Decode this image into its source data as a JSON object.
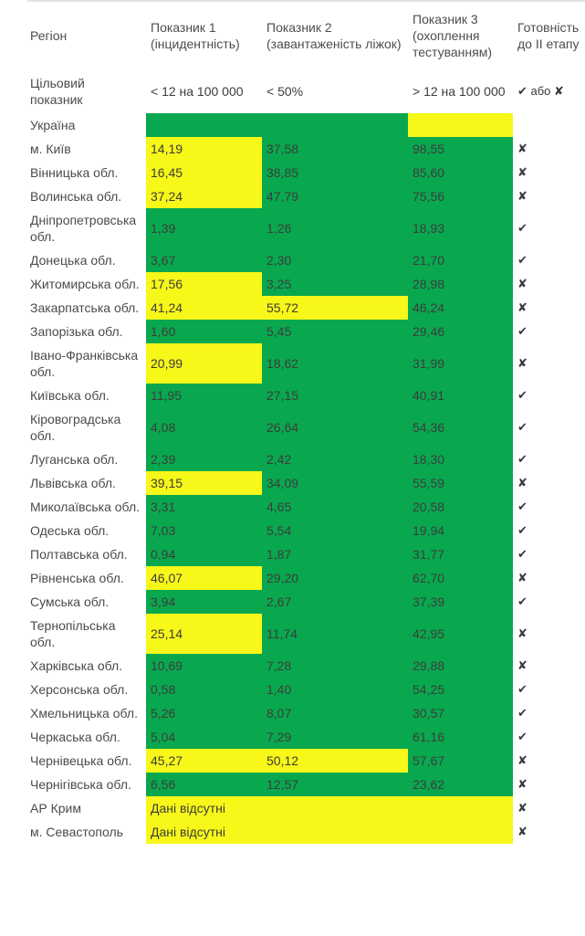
{
  "chart_data": {
    "type": "table",
    "colors": {
      "green": "#09a84f",
      "yellow": "#f7f719",
      "white": "#ffffff"
    },
    "header": {
      "region": "Регіон",
      "indicator1": "Показник 1 (інцидентність)",
      "indicator2": "Показник 2 (завантаженість ліжок)",
      "indicator3": "Показник 3 (охоплення тестуванням)",
      "readiness": "Готовність до II етапу"
    },
    "target_row": {
      "label": "Цільовий показник",
      "indicator1": "< 12 на 100 000",
      "indicator2": "< 50%",
      "indicator3": "> 12 на 100 000",
      "readiness": "✔ або ✘"
    },
    "no_data_text": "Дані відсутні",
    "rows": [
      {
        "region": "Україна",
        "values": [
          "",
          "",
          ""
        ],
        "colors": [
          "green",
          "green",
          "yellow"
        ],
        "mark": ""
      },
      {
        "region": "м. Київ",
        "values": [
          "14,19",
          "37,58",
          "98,55"
        ],
        "colors": [
          "yellow",
          "green",
          "green"
        ],
        "mark": "✘"
      },
      {
        "region": "Вінницька обл.",
        "values": [
          "16,45",
          "38,85",
          "85,60"
        ],
        "colors": [
          "yellow",
          "green",
          "green"
        ],
        "mark": "✘"
      },
      {
        "region": "Волинська обл.",
        "values": [
          "37,24",
          "47,79",
          "75,56"
        ],
        "colors": [
          "yellow",
          "green",
          "green"
        ],
        "mark": "✘"
      },
      {
        "region": "Дніпропетровська обл.",
        "values": [
          "1,39",
          "1,26",
          "18,93"
        ],
        "colors": [
          "green",
          "green",
          "green"
        ],
        "mark": "✔"
      },
      {
        "region": "Донецька обл.",
        "values": [
          "3,67",
          "2,30",
          "21,70"
        ],
        "colors": [
          "green",
          "green",
          "green"
        ],
        "mark": "✔"
      },
      {
        "region": "Житомирська обл.",
        "values": [
          "17,56",
          "3,25",
          "28,98"
        ],
        "colors": [
          "yellow",
          "green",
          "green"
        ],
        "mark": "✘"
      },
      {
        "region": "Закарпатська обл.",
        "values": [
          "41,24",
          "55,72",
          "46,24"
        ],
        "colors": [
          "yellow",
          "yellow",
          "green"
        ],
        "mark": "✘"
      },
      {
        "region": "Запорізька обл.",
        "values": [
          "1,60",
          "5,45",
          "29,46"
        ],
        "colors": [
          "green",
          "green",
          "green"
        ],
        "mark": "✔"
      },
      {
        "region": "Івано-Франківська обл.",
        "values": [
          "20,99",
          "18,62",
          "31,99"
        ],
        "colors": [
          "yellow",
          "green",
          "green"
        ],
        "mark": "✘"
      },
      {
        "region": "Київська обл.",
        "values": [
          "11,95",
          "27,15",
          "40,91"
        ],
        "colors": [
          "green",
          "green",
          "green"
        ],
        "mark": "✔"
      },
      {
        "region": "Кіровоградська обл.",
        "values": [
          "4,08",
          "26,64",
          "54,36"
        ],
        "colors": [
          "green",
          "green",
          "green"
        ],
        "mark": "✔"
      },
      {
        "region": "Луганська обл.",
        "values": [
          "2,39",
          "2,42",
          "18,30"
        ],
        "colors": [
          "green",
          "green",
          "green"
        ],
        "mark": "✔"
      },
      {
        "region": "Львівська обл.",
        "values": [
          "39,15",
          "34,09",
          "55,59"
        ],
        "colors": [
          "yellow",
          "green",
          "green"
        ],
        "mark": "✘"
      },
      {
        "region": "Миколаївська обл.",
        "values": [
          "3,31",
          "4,65",
          "20,58"
        ],
        "colors": [
          "green",
          "green",
          "green"
        ],
        "mark": "✔"
      },
      {
        "region": "Одеська обл.",
        "values": [
          "7,03",
          "5,54",
          "19,94"
        ],
        "colors": [
          "green",
          "green",
          "green"
        ],
        "mark": "✔"
      },
      {
        "region": "Полтавська обл.",
        "values": [
          "0,94",
          "1,87",
          "31,77"
        ],
        "colors": [
          "green",
          "green",
          "green"
        ],
        "mark": "✔"
      },
      {
        "region": "Рівненська обл.",
        "values": [
          "46,07",
          "29,20",
          "62,70"
        ],
        "colors": [
          "yellow",
          "green",
          "green"
        ],
        "mark": "✘"
      },
      {
        "region": "Сумська обл.",
        "values": [
          "3,94",
          "2,67",
          "37,39"
        ],
        "colors": [
          "green",
          "green",
          "green"
        ],
        "mark": "✔"
      },
      {
        "region": "Тернопільська обл.",
        "values": [
          "25,14",
          "11,74",
          "42,95"
        ],
        "colors": [
          "yellow",
          "green",
          "green"
        ],
        "mark": "✘"
      },
      {
        "region": "Харківська обл.",
        "values": [
          "10,69",
          "7,28",
          "29,88"
        ],
        "colors": [
          "green",
          "green",
          "green"
        ],
        "mark": "✘"
      },
      {
        "region": "Херсонська обл.",
        "values": [
          "0,58",
          "1,40",
          "54,25"
        ],
        "colors": [
          "green",
          "green",
          "green"
        ],
        "mark": "✔"
      },
      {
        "region": "Хмельницька обл.",
        "values": [
          "5,26",
          "8,07",
          "30,57"
        ],
        "colors": [
          "green",
          "green",
          "green"
        ],
        "mark": "✔"
      },
      {
        "region": "Черкаська обл.",
        "values": [
          "5,04",
          "7,29",
          "61,16"
        ],
        "colors": [
          "green",
          "green",
          "green"
        ],
        "mark": "✔"
      },
      {
        "region": "Чернівецька обл.",
        "values": [
          "45,27",
          "50,12",
          "57,67"
        ],
        "colors": [
          "yellow",
          "yellow",
          "green"
        ],
        "mark": "✘"
      },
      {
        "region": "Чернігівська обл.",
        "values": [
          "6,56",
          "12,57",
          "23,62"
        ],
        "colors": [
          "green",
          "green",
          "green"
        ],
        "mark": "✘"
      },
      {
        "region": "АР Крим",
        "no_data": true,
        "values": [
          "Дані відсутні"
        ],
        "colors": [
          "yellow"
        ],
        "mark": "✘"
      },
      {
        "region": "м. Севастополь",
        "no_data": true,
        "values": [
          "Дані відсутні"
        ],
        "colors": [
          "yellow"
        ],
        "mark": "✘"
      }
    ]
  }
}
